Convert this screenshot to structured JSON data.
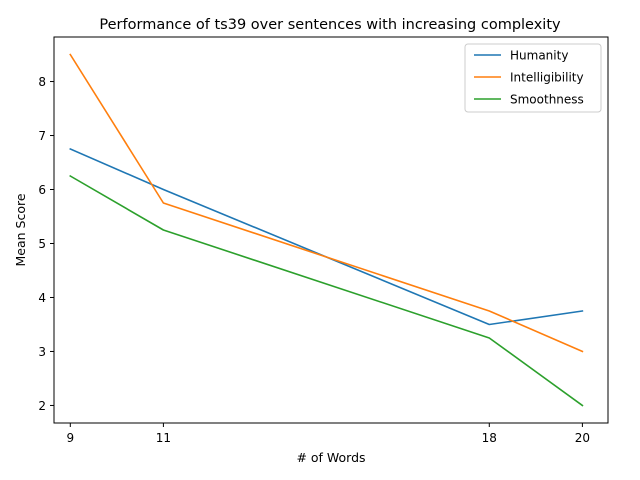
{
  "chart_data": {
    "type": "line",
    "title": "Performance of ts39 over sentences with increasing complexity",
    "xlabel": "# of Words",
    "ylabel": "Mean Score",
    "x": [
      9,
      11,
      18,
      20
    ],
    "xlim": [
      8.65,
      20.55
    ],
    "ylim": [
      1.675,
      8.825
    ],
    "xticks": [
      9,
      11,
      18,
      20
    ],
    "yticks": [
      2,
      3,
      4,
      5,
      6,
      7,
      8
    ],
    "grid": false,
    "legend_position": "top-right",
    "series": [
      {
        "name": "Humanity",
        "color": "#1f77b4",
        "values": [
          6.75,
          6.0,
          3.5,
          3.75
        ]
      },
      {
        "name": "Intelligibility",
        "color": "#ff7f0e",
        "values": [
          8.5,
          5.75,
          3.75,
          3.0
        ]
      },
      {
        "name": "Smoothness",
        "color": "#2ca02c",
        "values": [
          6.25,
          5.25,
          3.25,
          2.0
        ]
      }
    ]
  }
}
